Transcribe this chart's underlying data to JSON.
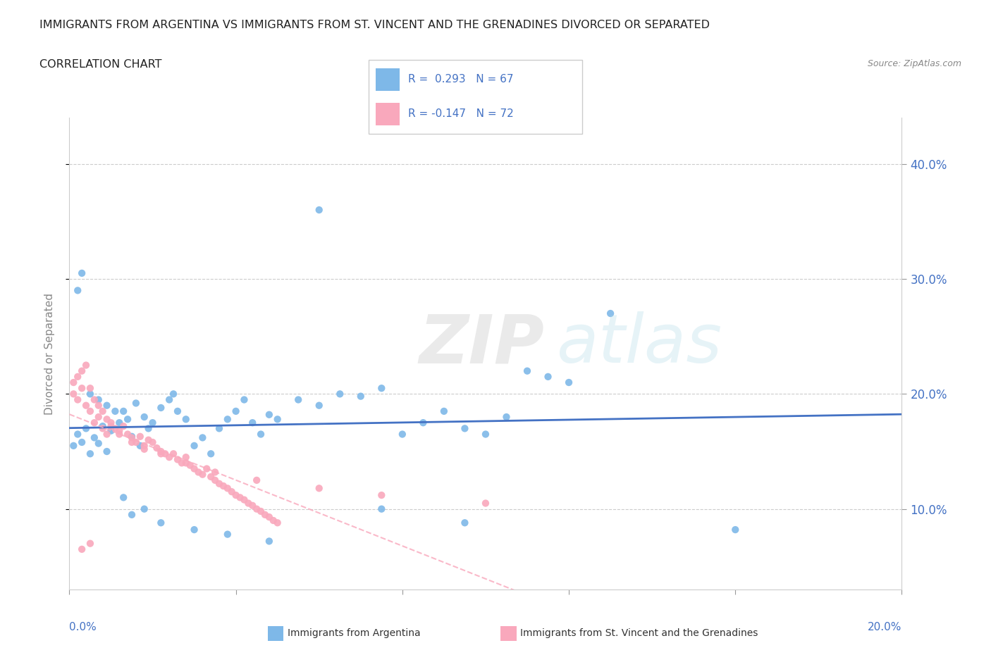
{
  "title_line1": "IMMIGRANTS FROM ARGENTINA VS IMMIGRANTS FROM ST. VINCENT AND THE GRENADINES DIVORCED OR SEPARATED",
  "title_line2": "CORRELATION CHART",
  "source": "Source: ZipAtlas.com",
  "ylabel": "Divorced or Separated",
  "y_tick_values": [
    0.1,
    0.2,
    0.3,
    0.4
  ],
  "x_range": [
    0.0,
    0.2
  ],
  "y_range": [
    0.03,
    0.44
  ],
  "color_argentina": "#7EB8E8",
  "color_stvincent": "#F9A8BC",
  "color_trend_argentina": "#4472C4",
  "color_trend_stvincent": "#F9A8BC",
  "color_text_blue": "#4472C4",
  "argentina_scatter_x": [
    0.001,
    0.002,
    0.003,
    0.004,
    0.005,
    0.006,
    0.007,
    0.008,
    0.009,
    0.01,
    0.012,
    0.013,
    0.014,
    0.015,
    0.016,
    0.017,
    0.018,
    0.019,
    0.02,
    0.022,
    0.024,
    0.025,
    0.026,
    0.028,
    0.03,
    0.032,
    0.034,
    0.036,
    0.038,
    0.04,
    0.042,
    0.044,
    0.046,
    0.048,
    0.05,
    0.055,
    0.06,
    0.065,
    0.07,
    0.075,
    0.08,
    0.085,
    0.09,
    0.095,
    0.1,
    0.105,
    0.11,
    0.115,
    0.12,
    0.13,
    0.002,
    0.003,
    0.005,
    0.007,
    0.009,
    0.011,
    0.013,
    0.015,
    0.018,
    0.022,
    0.03,
    0.038,
    0.048,
    0.06,
    0.075,
    0.095,
    0.16
  ],
  "argentina_scatter_y": [
    0.155,
    0.165,
    0.158,
    0.17,
    0.148,
    0.162,
    0.157,
    0.172,
    0.15,
    0.168,
    0.175,
    0.185,
    0.178,
    0.163,
    0.192,
    0.155,
    0.18,
    0.17,
    0.175,
    0.188,
    0.195,
    0.2,
    0.185,
    0.178,
    0.155,
    0.162,
    0.148,
    0.17,
    0.178,
    0.185,
    0.195,
    0.175,
    0.165,
    0.182,
    0.178,
    0.195,
    0.19,
    0.2,
    0.198,
    0.205,
    0.165,
    0.175,
    0.185,
    0.17,
    0.165,
    0.18,
    0.22,
    0.215,
    0.21,
    0.27,
    0.29,
    0.305,
    0.2,
    0.195,
    0.19,
    0.185,
    0.11,
    0.095,
    0.1,
    0.088,
    0.082,
    0.078,
    0.072,
    0.36,
    0.1,
    0.088,
    0.082
  ],
  "stvincent_scatter_x": [
    0.001,
    0.002,
    0.003,
    0.004,
    0.005,
    0.006,
    0.007,
    0.008,
    0.009,
    0.01,
    0.011,
    0.012,
    0.013,
    0.014,
    0.015,
    0.016,
    0.017,
    0.018,
    0.019,
    0.02,
    0.021,
    0.022,
    0.023,
    0.024,
    0.025,
    0.026,
    0.027,
    0.028,
    0.029,
    0.03,
    0.031,
    0.032,
    0.033,
    0.034,
    0.035,
    0.036,
    0.037,
    0.038,
    0.039,
    0.04,
    0.041,
    0.042,
    0.043,
    0.044,
    0.045,
    0.046,
    0.047,
    0.048,
    0.049,
    0.05,
    0.001,
    0.002,
    0.003,
    0.004,
    0.005,
    0.006,
    0.007,
    0.008,
    0.009,
    0.01,
    0.012,
    0.015,
    0.018,
    0.022,
    0.028,
    0.035,
    0.045,
    0.06,
    0.075,
    0.1,
    0.003,
    0.005
  ],
  "stvincent_scatter_y": [
    0.2,
    0.195,
    0.205,
    0.19,
    0.185,
    0.175,
    0.18,
    0.17,
    0.165,
    0.175,
    0.17,
    0.168,
    0.172,
    0.165,
    0.162,
    0.158,
    0.163,
    0.155,
    0.16,
    0.158,
    0.153,
    0.15,
    0.148,
    0.145,
    0.148,
    0.143,
    0.14,
    0.145,
    0.138,
    0.135,
    0.132,
    0.13,
    0.135,
    0.128,
    0.125,
    0.122,
    0.12,
    0.118,
    0.115,
    0.112,
    0.11,
    0.108,
    0.105,
    0.103,
    0.1,
    0.098,
    0.095,
    0.093,
    0.09,
    0.088,
    0.21,
    0.215,
    0.22,
    0.225,
    0.205,
    0.195,
    0.19,
    0.185,
    0.178,
    0.172,
    0.165,
    0.158,
    0.152,
    0.148,
    0.14,
    0.132,
    0.125,
    0.118,
    0.112,
    0.105,
    0.065,
    0.07
  ]
}
